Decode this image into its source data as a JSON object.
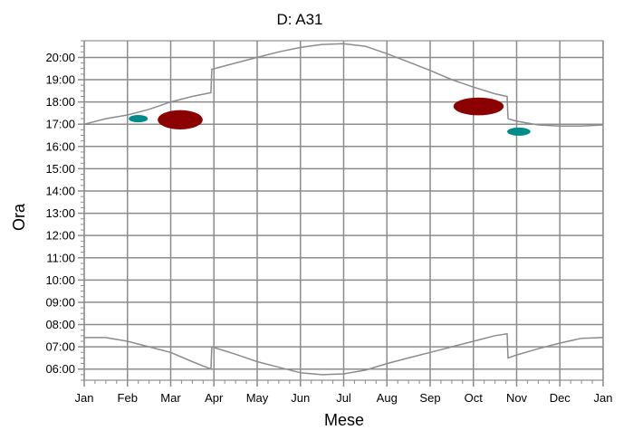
{
  "chart_data": {
    "type": "scatter",
    "title": "D: A31",
    "xlabel": "Mese",
    "ylabel": "Ora",
    "x_ticks": [
      "Jan",
      "Feb",
      "Mar",
      "Apr",
      "May",
      "Jun",
      "Jul",
      "Aug",
      "Sep",
      "Oct",
      "Nov",
      "Dec",
      "Jan"
    ],
    "y_ticks": [
      "06:00",
      "07:00",
      "08:00",
      "09:00",
      "10:00",
      "11:00",
      "12:00",
      "13:00",
      "14:00",
      "15:00",
      "16:00",
      "17:00",
      "18:00",
      "19:00",
      "20:00"
    ],
    "xlim": [
      0,
      12
    ],
    "ylim": [
      "05:30",
      "20:45"
    ],
    "grid": true,
    "colors": {
      "curve": "#8c8c8c",
      "grid": "#8c8c8c",
      "blob_dark_red": "#8b0000",
      "blob_teal": "#008b8b"
    },
    "sunset_curve": [
      {
        "x": 0.0,
        "y": "17:00"
      },
      {
        "x": 0.5,
        "y": "17:15"
      },
      {
        "x": 1.0,
        "y": "17:25"
      },
      {
        "x": 1.5,
        "y": "17:40"
      },
      {
        "x": 2.0,
        "y": "18:00"
      },
      {
        "x": 2.5,
        "y": "18:15"
      },
      {
        "x": 2.93,
        "y": "18:25"
      },
      {
        "x": 2.95,
        "y": "19:28"
      },
      {
        "x": 3.5,
        "y": "19:45"
      },
      {
        "x": 4.0,
        "y": "20:00"
      },
      {
        "x": 4.5,
        "y": "20:15"
      },
      {
        "x": 5.0,
        "y": "20:27"
      },
      {
        "x": 5.5,
        "y": "20:35"
      },
      {
        "x": 6.0,
        "y": "20:37"
      },
      {
        "x": 6.5,
        "y": "20:30"
      },
      {
        "x": 7.0,
        "y": "20:10"
      },
      {
        "x": 7.5,
        "y": "19:48"
      },
      {
        "x": 8.0,
        "y": "19:25"
      },
      {
        "x": 8.5,
        "y": "19:00"
      },
      {
        "x": 9.0,
        "y": "18:40"
      },
      {
        "x": 9.5,
        "y": "18:22"
      },
      {
        "x": 9.78,
        "y": "18:15"
      },
      {
        "x": 9.8,
        "y": "17:15"
      },
      {
        "x": 10.0,
        "y": "17:08"
      },
      {
        "x": 10.5,
        "y": "16:58"
      },
      {
        "x": 11.0,
        "y": "16:55"
      },
      {
        "x": 11.5,
        "y": "16:55"
      },
      {
        "x": 12.0,
        "y": "16:58"
      }
    ],
    "sunrise_curve": [
      {
        "x": 0.0,
        "y": "07:25"
      },
      {
        "x": 0.5,
        "y": "07:25"
      },
      {
        "x": 1.0,
        "y": "07:15"
      },
      {
        "x": 1.5,
        "y": "07:00"
      },
      {
        "x": 2.0,
        "y": "06:45"
      },
      {
        "x": 2.5,
        "y": "06:20"
      },
      {
        "x": 2.93,
        "y": "06:00"
      },
      {
        "x": 2.95,
        "y": "07:00"
      },
      {
        "x": 3.5,
        "y": "06:40"
      },
      {
        "x": 4.0,
        "y": "06:20"
      },
      {
        "x": 4.5,
        "y": "06:05"
      },
      {
        "x": 5.0,
        "y": "05:50"
      },
      {
        "x": 5.5,
        "y": "05:45"
      },
      {
        "x": 6.0,
        "y": "05:47"
      },
      {
        "x": 6.5,
        "y": "05:57"
      },
      {
        "x": 7.0,
        "y": "06:15"
      },
      {
        "x": 7.5,
        "y": "06:30"
      },
      {
        "x": 8.0,
        "y": "06:45"
      },
      {
        "x": 8.5,
        "y": "07:00"
      },
      {
        "x": 9.0,
        "y": "07:15"
      },
      {
        "x": 9.5,
        "y": "07:30"
      },
      {
        "x": 9.78,
        "y": "07:35"
      },
      {
        "x": 9.8,
        "y": "06:30"
      },
      {
        "x": 10.0,
        "y": "06:38"
      },
      {
        "x": 10.5,
        "y": "06:55"
      },
      {
        "x": 11.0,
        "y": "07:10"
      },
      {
        "x": 11.5,
        "y": "07:23"
      },
      {
        "x": 12.0,
        "y": "07:25"
      }
    ],
    "blobs": [
      {
        "color": "dark_red",
        "x_center": 2.22,
        "x_half_width": 0.52,
        "y_center": "17:12",
        "y_half_height_min": 26
      },
      {
        "color": "teal",
        "x_center": 1.25,
        "x_half_width": 0.22,
        "y_center": "17:15",
        "y_half_height_min": 10
      },
      {
        "color": "dark_red",
        "x_center": 9.12,
        "x_half_width": 0.58,
        "y_center": "17:48",
        "y_half_height_min": 24
      },
      {
        "color": "teal",
        "x_center": 10.05,
        "x_half_width": 0.27,
        "y_center": "16:40",
        "y_half_height_min": 11
      }
    ]
  }
}
